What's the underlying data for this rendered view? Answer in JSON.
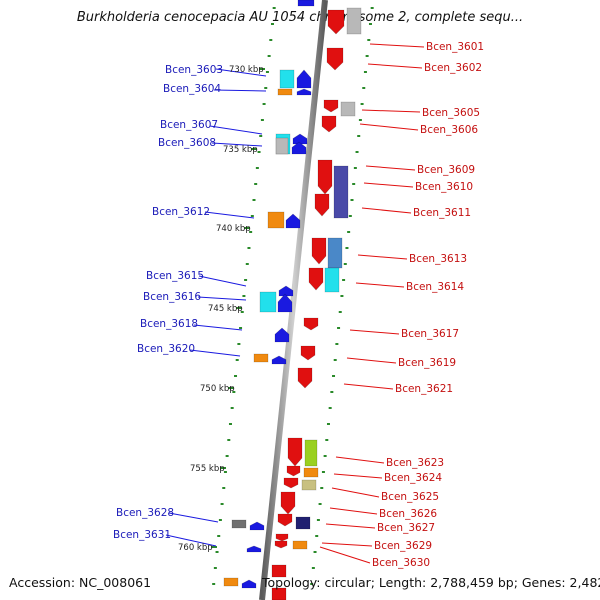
{
  "title": "Burkholderia cenocepacia AU 1054 chromosome 2, complete sequ...",
  "footer": {
    "accession": "Accession: NC_008061",
    "stats": "Topology: circular; Length: 2,788,459 bp; Genes: 2,482"
  },
  "scale_marks": [
    "730 kbp",
    "735 kbp",
    "740 kbp",
    "745 kbp",
    "750 kbp",
    "755 kbp",
    "760 kbp"
  ],
  "genes_left": [
    "Bcen_3603",
    "Bcen_3604",
    "Bcen_3607",
    "Bcen_3608",
    "Bcen_3612",
    "Bcen_3615",
    "Bcen_3616",
    "Bcen_3618",
    "Bcen_3620",
    "Bcen_3628",
    "Bcen_3631"
  ],
  "genes_right": [
    "Bcen_3601",
    "Bcen_3602",
    "Bcen_3605",
    "Bcen_3606",
    "Bcen_3609",
    "Bcen_3610",
    "Bcen_3611",
    "Bcen_3613",
    "Bcen_3614",
    "Bcen_3617",
    "Bcen_3619",
    "Bcen_3621",
    "Bcen_3623",
    "Bcen_3624",
    "Bcen_3625",
    "Bcen_3626",
    "Bcen_3627",
    "Bcen_3629",
    "Bcen_3630"
  ],
  "colors": {
    "forward": "#e01010",
    "reverse": "#1a1ae0",
    "cyan": "#22e0ec",
    "orange": "#f08a10",
    "gray": "#b8b8b8",
    "purple": "#4a4aa8",
    "steel": "#4a88c8",
    "yellowgreen": "#9ad020",
    "tan": "#c8c080",
    "navy": "#202070",
    "tick": "#2a8a2a",
    "backbone": "#8a8a8a"
  }
}
